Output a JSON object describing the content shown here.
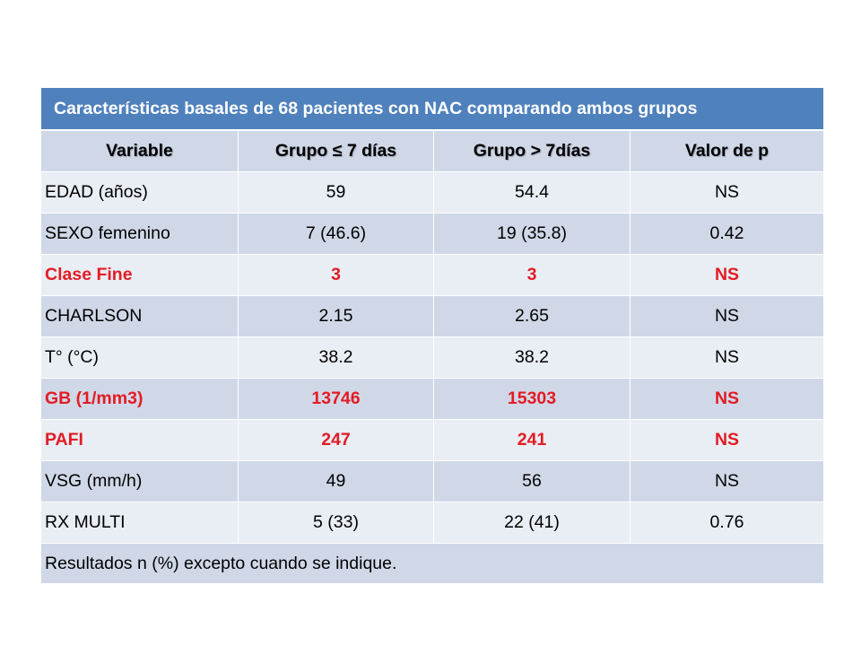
{
  "title": "Características basales de 68 pacientes con NAC comparando ambos grupos",
  "headers": [
    "Variable",
    "Grupo ≤ 7 días",
    "Grupo > 7días",
    "Valor de p"
  ],
  "rows": [
    {
      "cells": [
        "EDAD (años)",
        "59",
        "54.4",
        "NS"
      ],
      "highlight": false
    },
    {
      "cells": [
        "SEXO femenino",
        "7 (46.6)",
        "19 (35.8)",
        "0.42"
      ],
      "highlight": false
    },
    {
      "cells": [
        "Clase Fine",
        "3",
        "3",
        "NS"
      ],
      "highlight": true
    },
    {
      "cells": [
        "CHARLSON",
        "2.15",
        "2.65",
        "NS"
      ],
      "highlight": false
    },
    {
      "cells": [
        "T° (°C)",
        "38.2",
        "38.2",
        "NS"
      ],
      "highlight": false
    },
    {
      "cells": [
        "GB (1/mm3)",
        "13746",
        "15303",
        "NS"
      ],
      "highlight": true
    },
    {
      "cells": [
        "PAFI",
        "247",
        "241",
        "NS"
      ],
      "highlight": true
    },
    {
      "cells": [
        "VSG (mm/h)",
        "49",
        "56",
        "NS"
      ],
      "highlight": false
    },
    {
      "cells": [
        "RX MULTI",
        "5 (33)",
        "22 (41)",
        "0.76"
      ],
      "highlight": false
    }
  ],
  "footer": "Resultados n (%) excepto cuando se indique.",
  "colors": {
    "title_bg": "#4f81bd",
    "row_dark": "#d0d8e8",
    "row_light": "#e9edf4",
    "highlight_text": "#e31b23"
  }
}
